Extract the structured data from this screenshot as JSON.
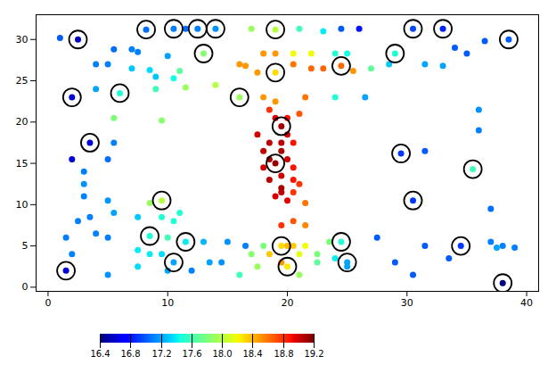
{
  "chart_data": {
    "type": "scatter",
    "xlim": [
      -1,
      41
    ],
    "ylim": [
      -0.5,
      33
    ],
    "xticks": [
      0,
      10,
      20,
      30,
      40
    ],
    "yticks": [
      0,
      5,
      10,
      15,
      20,
      25,
      30
    ],
    "grid": false,
    "color": "jet",
    "colorbar": {
      "lim": [
        16.4,
        19.2
      ],
      "ticks": [
        16.4,
        16.8,
        17.2,
        17.6,
        {
          "value": 18,
          "label": "18.0"
        },
        18.4,
        18.8,
        19.2
      ]
    },
    "points": [
      {
        "x": 1.0,
        "y": 30.2,
        "value": 17.0,
        "circled": false
      },
      {
        "x": 2.5,
        "y": 30.0,
        "value": 16.55,
        "circled": true
      },
      {
        "x": 8.2,
        "y": 31.2,
        "value": 17.05,
        "circled": true
      },
      {
        "x": 10.5,
        "y": 31.3,
        "value": 17.1,
        "circled": true
      },
      {
        "x": 11.5,
        "y": 31.3,
        "value": 17.05,
        "circled": false
      },
      {
        "x": 12.5,
        "y": 31.3,
        "value": 17.1,
        "circled": true
      },
      {
        "x": 14.0,
        "y": 31.3,
        "value": 17.15,
        "circled": true
      },
      {
        "x": 17.0,
        "y": 31.3,
        "value": 17.9,
        "circled": false
      },
      {
        "x": 19.0,
        "y": 31.2,
        "value": 18.0,
        "circled": true
      },
      {
        "x": 21.0,
        "y": 31.3,
        "value": 17.6,
        "circled": false
      },
      {
        "x": 23.0,
        "y": 31.0,
        "value": 17.4,
        "circled": false
      },
      {
        "x": 24.5,
        "y": 31.3,
        "value": 17.0,
        "circled": false
      },
      {
        "x": 26.0,
        "y": 31.3,
        "value": 16.8,
        "circled": false
      },
      {
        "x": 30.5,
        "y": 31.3,
        "value": 16.95,
        "circled": true
      },
      {
        "x": 33.0,
        "y": 31.3,
        "value": 16.85,
        "circled": true
      },
      {
        "x": 36.5,
        "y": 29.8,
        "value": 17.0,
        "circled": false
      },
      {
        "x": 38.5,
        "y": 30.0,
        "value": 17.0,
        "circled": true
      },
      {
        "x": 5.5,
        "y": 28.8,
        "value": 17.05,
        "circled": false
      },
      {
        "x": 7.0,
        "y": 28.8,
        "value": 17.1,
        "circled": false
      },
      {
        "x": 7.5,
        "y": 28.5,
        "value": 17.1,
        "circled": false
      },
      {
        "x": 10.0,
        "y": 28.0,
        "value": 17.2,
        "circled": false
      },
      {
        "x": 13.0,
        "y": 28.3,
        "value": 17.85,
        "circled": true
      },
      {
        "x": 18.0,
        "y": 28.3,
        "value": 18.5,
        "circled": false
      },
      {
        "x": 19.0,
        "y": 28.3,
        "value": 18.5,
        "circled": false
      },
      {
        "x": 20.5,
        "y": 28.3,
        "value": 18.2,
        "circled": false
      },
      {
        "x": 22.0,
        "y": 28.3,
        "value": 18.2,
        "circled": false
      },
      {
        "x": 24.0,
        "y": 28.3,
        "value": 17.5,
        "circled": false
      },
      {
        "x": 25.0,
        "y": 28.3,
        "value": 17.45,
        "circled": false
      },
      {
        "x": 29.0,
        "y": 28.3,
        "value": 17.5,
        "circled": true
      },
      {
        "x": 34.0,
        "y": 29.0,
        "value": 17.0,
        "circled": false
      },
      {
        "x": 35.0,
        "y": 28.3,
        "value": 17.0,
        "circled": false
      },
      {
        "x": 4.0,
        "y": 27.0,
        "value": 17.1,
        "circled": false
      },
      {
        "x": 5.0,
        "y": 27.0,
        "value": 17.1,
        "circled": false
      },
      {
        "x": 7.0,
        "y": 26.5,
        "value": 17.3,
        "circled": false
      },
      {
        "x": 8.5,
        "y": 26.3,
        "value": 17.35,
        "circled": false
      },
      {
        "x": 9.0,
        "y": 25.5,
        "value": 17.3,
        "circled": false
      },
      {
        "x": 10.5,
        "y": 25.3,
        "value": 17.45,
        "circled": false
      },
      {
        "x": 11.0,
        "y": 26.2,
        "value": 17.7,
        "circled": false
      },
      {
        "x": 16.0,
        "y": 27.0,
        "value": 18.5,
        "circled": false
      },
      {
        "x": 16.5,
        "y": 26.8,
        "value": 18.5,
        "circled": false
      },
      {
        "x": 17.5,
        "y": 26.0,
        "value": 18.5,
        "circled": false
      },
      {
        "x": 19.0,
        "y": 26.0,
        "value": 18.3,
        "circled": true
      },
      {
        "x": 20.5,
        "y": 27.0,
        "value": 18.6,
        "circled": false
      },
      {
        "x": 22.0,
        "y": 26.5,
        "value": 18.65,
        "circled": false
      },
      {
        "x": 23.0,
        "y": 26.5,
        "value": 18.65,
        "circled": false
      },
      {
        "x": 24.5,
        "y": 26.8,
        "value": 18.65,
        "circled": true
      },
      {
        "x": 25.5,
        "y": 26.2,
        "value": 18.5,
        "circled": false
      },
      {
        "x": 27.0,
        "y": 26.5,
        "value": 17.7,
        "circled": false
      },
      {
        "x": 28.5,
        "y": 27.0,
        "value": 17.3,
        "circled": false
      },
      {
        "x": 31.5,
        "y": 27.0,
        "value": 17.2,
        "circled": false
      },
      {
        "x": 33.0,
        "y": 26.8,
        "value": 17.2,
        "circled": false
      },
      {
        "x": 2.0,
        "y": 23.0,
        "value": 16.6,
        "circled": true
      },
      {
        "x": 4.0,
        "y": 24.0,
        "value": 17.2,
        "circled": false
      },
      {
        "x": 6.0,
        "y": 23.5,
        "value": 17.5,
        "circled": true
      },
      {
        "x": 9.0,
        "y": 24.0,
        "value": 17.6,
        "circled": false
      },
      {
        "x": 11.5,
        "y": 24.2,
        "value": 17.9,
        "circled": false
      },
      {
        "x": 14.0,
        "y": 24.5,
        "value": 18.0,
        "circled": false
      },
      {
        "x": 16.0,
        "y": 23.0,
        "value": 17.9,
        "circled": true
      },
      {
        "x": 18.0,
        "y": 23.0,
        "value": 18.5,
        "circled": false
      },
      {
        "x": 19.0,
        "y": 22.5,
        "value": 18.5,
        "circled": false
      },
      {
        "x": 21.5,
        "y": 23.0,
        "value": 18.6,
        "circled": false
      },
      {
        "x": 24.0,
        "y": 23.0,
        "value": 17.5,
        "circled": false
      },
      {
        "x": 26.5,
        "y": 23.0,
        "value": 17.2,
        "circled": false
      },
      {
        "x": 36.0,
        "y": 21.5,
        "value": 17.15,
        "circled": false
      },
      {
        "x": 5.5,
        "y": 20.5,
        "value": 17.8,
        "circled": false
      },
      {
        "x": 9.5,
        "y": 20.2,
        "value": 17.85,
        "circled": false
      },
      {
        "x": 18.5,
        "y": 21.5,
        "value": 18.8,
        "circled": false
      },
      {
        "x": 19.0,
        "y": 20.5,
        "value": 19.0,
        "circled": false
      },
      {
        "x": 19.5,
        "y": 19.5,
        "value": 19.1,
        "circled": true
      },
      {
        "x": 20.0,
        "y": 20.5,
        "value": 18.9,
        "circled": false
      },
      {
        "x": 21.0,
        "y": 21.0,
        "value": 18.7,
        "circled": false
      },
      {
        "x": 36.0,
        "y": 19.0,
        "value": 17.1,
        "circled": false
      },
      {
        "x": 3.5,
        "y": 17.5,
        "value": 16.6,
        "circled": true
      },
      {
        "x": 5.5,
        "y": 17.5,
        "value": 17.1,
        "circled": false
      },
      {
        "x": 17.5,
        "y": 18.5,
        "value": 19.0,
        "circled": false
      },
      {
        "x": 18.5,
        "y": 17.5,
        "value": 19.05,
        "circled": false
      },
      {
        "x": 19.5,
        "y": 17.5,
        "value": 19.05,
        "circled": false
      },
      {
        "x": 20.0,
        "y": 18.5,
        "value": 19.0,
        "circled": false
      },
      {
        "x": 20.5,
        "y": 17.5,
        "value": 18.9,
        "circled": false
      },
      {
        "x": 29.5,
        "y": 16.2,
        "value": 16.9,
        "circled": true
      },
      {
        "x": 31.5,
        "y": 16.5,
        "value": 17.0,
        "circled": false
      },
      {
        "x": 2.0,
        "y": 15.5,
        "value": 16.6,
        "circled": false
      },
      {
        "x": 5.0,
        "y": 15.5,
        "value": 17.05,
        "circled": false
      },
      {
        "x": 18.0,
        "y": 16.5,
        "value": 19.05,
        "circled": false
      },
      {
        "x": 18.5,
        "y": 15.5,
        "value": 19.1,
        "circled": false
      },
      {
        "x": 19.0,
        "y": 15.0,
        "value": 19.15,
        "circled": true
      },
      {
        "x": 19.5,
        "y": 16.5,
        "value": 19.1,
        "circled": false
      },
      {
        "x": 20.0,
        "y": 15.5,
        "value": 19.0,
        "circled": false
      },
      {
        "x": 35.5,
        "y": 14.3,
        "value": 17.6,
        "circled": true
      },
      {
        "x": 3.0,
        "y": 14.0,
        "value": 17.1,
        "circled": false
      },
      {
        "x": 18.0,
        "y": 14.5,
        "value": 19.0,
        "circled": false
      },
      {
        "x": 19.5,
        "y": 13.5,
        "value": 19.0,
        "circled": false
      },
      {
        "x": 20.5,
        "y": 14.5,
        "value": 18.9,
        "circled": false
      },
      {
        "x": 3.0,
        "y": 12.5,
        "value": 17.15,
        "circled": false
      },
      {
        "x": 18.5,
        "y": 13.0,
        "value": 19.05,
        "circled": false
      },
      {
        "x": 19.5,
        "y": 12.0,
        "value": 19.1,
        "circled": false
      },
      {
        "x": 20.5,
        "y": 13.0,
        "value": 18.9,
        "circled": false
      },
      {
        "x": 21.0,
        "y": 12.5,
        "value": 18.8,
        "circled": false
      },
      {
        "x": 3.0,
        "y": 11.0,
        "value": 17.1,
        "circled": false
      },
      {
        "x": 5.0,
        "y": 10.5,
        "value": 17.15,
        "circled": false
      },
      {
        "x": 8.5,
        "y": 10.2,
        "value": 17.9,
        "circled": false
      },
      {
        "x": 9.5,
        "y": 10.5,
        "value": 18.0,
        "circled": true
      },
      {
        "x": 19.0,
        "y": 11.0,
        "value": 19.0,
        "circled": false
      },
      {
        "x": 19.5,
        "y": 11.5,
        "value": 19.05,
        "circled": false
      },
      {
        "x": 20.0,
        "y": 10.5,
        "value": 18.95,
        "circled": false
      },
      {
        "x": 20.5,
        "y": 11.5,
        "value": 18.8,
        "circled": false
      },
      {
        "x": 21.5,
        "y": 10.2,
        "value": 18.6,
        "circled": false
      },
      {
        "x": 30.5,
        "y": 10.5,
        "value": 16.9,
        "circled": true
      },
      {
        "x": 37.0,
        "y": 9.5,
        "value": 17.05,
        "circled": false
      },
      {
        "x": 5.5,
        "y": 9.0,
        "value": 17.2,
        "circled": false
      },
      {
        "x": 7.5,
        "y": 8.5,
        "value": 17.3,
        "circled": false
      },
      {
        "x": 9.5,
        "y": 8.5,
        "value": 17.5,
        "circled": false
      },
      {
        "x": 10.5,
        "y": 8.0,
        "value": 17.5,
        "circled": false
      },
      {
        "x": 11.0,
        "y": 9.0,
        "value": 17.5,
        "circled": false
      },
      {
        "x": 19.5,
        "y": 7.5,
        "value": 18.8,
        "circled": false
      },
      {
        "x": 20.5,
        "y": 8.0,
        "value": 18.7,
        "circled": false
      },
      {
        "x": 21.5,
        "y": 7.5,
        "value": 18.55,
        "circled": false
      },
      {
        "x": 2.5,
        "y": 8.0,
        "value": 17.1,
        "circled": false
      },
      {
        "x": 3.5,
        "y": 8.5,
        "value": 17.1,
        "circled": false
      },
      {
        "x": 8.5,
        "y": 6.2,
        "value": 17.5,
        "circled": true
      },
      {
        "x": 10.0,
        "y": 6.0,
        "value": 17.6,
        "circled": false
      },
      {
        "x": 11.5,
        "y": 5.5,
        "value": 17.4,
        "circled": true
      },
      {
        "x": 13.0,
        "y": 5.5,
        "value": 17.25,
        "circled": false
      },
      {
        "x": 15.0,
        "y": 5.5,
        "value": 17.15,
        "circled": false
      },
      {
        "x": 16.5,
        "y": 5.0,
        "value": 17.1,
        "circled": false
      },
      {
        "x": 18.0,
        "y": 5.0,
        "value": 17.8,
        "circled": false
      },
      {
        "x": 19.5,
        "y": 5.0,
        "value": 18.3,
        "circled": true
      },
      {
        "x": 20.0,
        "y": 5.0,
        "value": 18.4,
        "circled": false
      },
      {
        "x": 20.5,
        "y": 5.0,
        "value": 18.35,
        "circled": false
      },
      {
        "x": 21.5,
        "y": 5.0,
        "value": 18.2,
        "circled": false
      },
      {
        "x": 23.5,
        "y": 5.5,
        "value": 17.8,
        "circled": false
      },
      {
        "x": 24.5,
        "y": 5.5,
        "value": 17.5,
        "circled": true
      },
      {
        "x": 27.5,
        "y": 6.0,
        "value": 17.0,
        "circled": false
      },
      {
        "x": 31.5,
        "y": 5.0,
        "value": 17.0,
        "circled": false
      },
      {
        "x": 34.5,
        "y": 5.0,
        "value": 16.9,
        "circled": true
      },
      {
        "x": 37.0,
        "y": 5.5,
        "value": 17.1,
        "circled": false
      },
      {
        "x": 38.0,
        "y": 5.0,
        "value": 17.1,
        "circled": false
      },
      {
        "x": 1.5,
        "y": 6.0,
        "value": 17.1,
        "circled": false
      },
      {
        "x": 4.0,
        "y": 6.5,
        "value": 17.1,
        "circled": false
      },
      {
        "x": 5.0,
        "y": 6.0,
        "value": 17.1,
        "circled": false
      },
      {
        "x": 2.0,
        "y": 4.0,
        "value": 17.1,
        "circled": false
      },
      {
        "x": 7.5,
        "y": 4.5,
        "value": 17.4,
        "circled": false
      },
      {
        "x": 8.5,
        "y": 4.0,
        "value": 17.4,
        "circled": false
      },
      {
        "x": 9.5,
        "y": 4.0,
        "value": 17.35,
        "circled": false
      },
      {
        "x": 10.5,
        "y": 3.0,
        "value": 17.2,
        "circled": true
      },
      {
        "x": 13.5,
        "y": 3.0,
        "value": 17.2,
        "circled": false
      },
      {
        "x": 17.0,
        "y": 4.0,
        "value": 17.85,
        "circled": false
      },
      {
        "x": 18.5,
        "y": 4.0,
        "value": 18.35,
        "circled": false
      },
      {
        "x": 19.5,
        "y": 3.0,
        "value": 18.5,
        "circled": false
      },
      {
        "x": 21.0,
        "y": 4.0,
        "value": 18.15,
        "circled": false
      },
      {
        "x": 22.5,
        "y": 4.0,
        "value": 17.8,
        "circled": false
      },
      {
        "x": 24.0,
        "y": 3.5,
        "value": 17.4,
        "circled": false
      },
      {
        "x": 25.0,
        "y": 3.0,
        "value": 17.2,
        "circled": true
      },
      {
        "x": 29.0,
        "y": 3.0,
        "value": 17.0,
        "circled": false
      },
      {
        "x": 1.5,
        "y": 2.0,
        "value": 16.6,
        "circled": true
      },
      {
        "x": 5.0,
        "y": 1.5,
        "value": 17.15,
        "circled": false
      },
      {
        "x": 7.5,
        "y": 2.5,
        "value": 17.35,
        "circled": false
      },
      {
        "x": 10.0,
        "y": 2.0,
        "value": 17.2,
        "circled": false
      },
      {
        "x": 12.0,
        "y": 2.0,
        "value": 17.1,
        "circled": false
      },
      {
        "x": 14.5,
        "y": 3.0,
        "value": 17.15,
        "circled": false
      },
      {
        "x": 17.5,
        "y": 2.5,
        "value": 17.9,
        "circled": false
      },
      {
        "x": 20.0,
        "y": 2.5,
        "value": 18.25,
        "circled": true
      },
      {
        "x": 22.5,
        "y": 3.0,
        "value": 17.7,
        "circled": false
      },
      {
        "x": 25.0,
        "y": 2.5,
        "value": 17.2,
        "circled": false
      },
      {
        "x": 30.5,
        "y": 1.5,
        "value": 17.0,
        "circled": false
      },
      {
        "x": 33.5,
        "y": 3.5,
        "value": 17.0,
        "circled": false
      },
      {
        "x": 38.0,
        "y": 0.5,
        "value": 16.4,
        "circled": true
      },
      {
        "x": 16.0,
        "y": 1.5,
        "value": 17.6,
        "circled": false
      },
      {
        "x": 21.0,
        "y": 1.5,
        "value": 17.9,
        "circled": false
      },
      {
        "x": 37.5,
        "y": 4.8,
        "value": 17.2,
        "circled": false
      },
      {
        "x": 39.0,
        "y": 4.8,
        "value": 17.1,
        "circled": false
      }
    ]
  }
}
